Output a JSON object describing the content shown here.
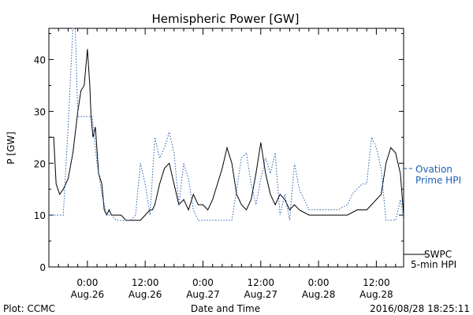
{
  "footer": {
    "left": "Plot: CCMC",
    "right": "2016/08/28 18:25:11"
  },
  "colors": {
    "swpc": "#000000",
    "ovation": "#1f5fb4"
  },
  "chart_data": {
    "type": "line",
    "title": "Hemispheric Power [GW]",
    "xlabel": "Date and Time",
    "ylabel": "P [GW]",
    "ylim": [
      0,
      46
    ],
    "xlim": [
      "2016-08-25 16:00",
      "2016-08-28 17:40"
    ],
    "yticks": [
      0,
      10,
      20,
      30,
      40
    ],
    "xticks": [
      {
        "time": "2016-08-26 00:00",
        "label1": "0:00",
        "label2": "Aug.26"
      },
      {
        "time": "2016-08-26 12:00",
        "label1": "12:00",
        "label2": "Aug.26"
      },
      {
        "time": "2016-08-27 00:00",
        "label1": "0:00",
        "label2": "Aug.27"
      },
      {
        "time": "2016-08-27 12:00",
        "label1": "12:00",
        "label2": "Aug.27"
      },
      {
        "time": "2016-08-28 00:00",
        "label1": "0:00",
        "label2": "Aug.28"
      },
      {
        "time": "2016-08-28 12:00",
        "label1": "12:00",
        "label2": "Aug.28"
      }
    ],
    "grid": false,
    "legend_position": "right",
    "series": [
      {
        "name": "SWPC 5-min HPI",
        "legend_line1": "SWPC",
        "legend_line2": "5-min HPI",
        "style": "solid",
        "x": [
          "2016-08-25 16:00",
          "2016-08-25 17:00",
          "2016-08-25 17:30",
          "2016-08-25 18:15",
          "2016-08-25 19:00",
          "2016-08-25 20:00",
          "2016-08-25 21:00",
          "2016-08-25 22:00",
          "2016-08-25 22:40",
          "2016-08-25 23:20",
          "2016-08-26 00:00",
          "2016-08-26 00:30",
          "2016-08-26 00:45",
          "2016-08-26 01:10",
          "2016-08-26 01:40",
          "2016-08-26 02:20",
          "2016-08-26 03:00",
          "2016-08-26 03:30",
          "2016-08-26 04:00",
          "2016-08-26 04:30",
          "2016-08-26 05:00",
          "2016-08-26 05:30",
          "2016-08-26 06:00",
          "2016-08-26 07:00",
          "2016-08-26 08:00",
          "2016-08-26 09:00",
          "2016-08-26 10:00",
          "2016-08-26 11:00",
          "2016-08-26 12:00",
          "2016-08-26 13:00",
          "2016-08-26 13:30",
          "2016-08-26 14:00",
          "2016-08-26 15:00",
          "2016-08-26 16:00",
          "2016-08-26 17:00",
          "2016-08-26 18:00",
          "2016-08-26 19:00",
          "2016-08-26 20:00",
          "2016-08-26 21:00",
          "2016-08-26 22:00",
          "2016-08-26 23:00",
          "2016-08-27 00:00",
          "2016-08-27 01:00",
          "2016-08-27 02:00",
          "2016-08-27 03:00",
          "2016-08-27 04:00",
          "2016-08-27 05:00",
          "2016-08-27 06:00",
          "2016-08-27 07:00",
          "2016-08-27 08:00",
          "2016-08-27 09:00",
          "2016-08-27 10:00",
          "2016-08-27 11:00",
          "2016-08-27 12:00",
          "2016-08-27 13:00",
          "2016-08-27 14:00",
          "2016-08-27 15:00",
          "2016-08-27 16:00",
          "2016-08-27 17:00",
          "2016-08-27 18:00",
          "2016-08-27 19:00",
          "2016-08-27 20:00",
          "2016-08-27 22:00",
          "2016-08-28 00:00",
          "2016-08-28 02:00",
          "2016-08-28 04:00",
          "2016-08-28 06:00",
          "2016-08-28 08:00",
          "2016-08-28 09:00",
          "2016-08-28 10:00",
          "2016-08-28 11:00",
          "2016-08-28 12:00",
          "2016-08-28 13:00",
          "2016-08-28 14:00",
          "2016-08-28 15:00",
          "2016-08-28 16:00",
          "2016-08-28 17:00",
          "2016-08-28 17:40"
        ],
        "y": [
          25,
          25,
          16,
          14,
          15,
          17,
          22,
          30,
          34,
          35,
          42,
          35,
          29,
          25,
          27,
          18,
          16,
          11,
          10,
          11,
          10,
          10,
          10,
          10,
          9,
          9,
          9,
          9,
          10,
          11,
          11,
          12,
          16,
          19,
          20,
          16,
          12,
          13,
          11,
          14,
          12,
          12,
          11,
          13,
          16,
          19,
          23,
          20,
          14,
          12,
          11,
          13,
          18,
          24,
          18,
          14,
          12,
          14,
          13,
          11,
          12,
          11,
          10,
          10,
          10,
          10,
          10,
          11,
          11,
          11,
          12,
          13,
          14,
          20,
          23,
          22,
          18,
          10
        ]
      },
      {
        "name": "Ovation Prime HPI",
        "legend_line1": "Ovation",
        "legend_line2": "Prime HPI",
        "style": "dotted",
        "x": [
          "2016-08-25 16:00",
          "2016-08-25 19:00",
          "2016-08-25 20:00",
          "2016-08-25 21:00",
          "2016-08-25 21:30",
          "2016-08-25 22:00",
          "2016-08-25 23:00",
          "2016-08-26 00:00",
          "2016-08-26 01:00",
          "2016-08-26 02:00",
          "2016-08-26 03:00",
          "2016-08-26 04:00",
          "2016-08-26 05:00",
          "2016-08-26 06:00",
          "2016-08-26 07:00",
          "2016-08-26 09:00",
          "2016-08-26 10:00",
          "2016-08-26 11:00",
          "2016-08-26 12:00",
          "2016-08-26 13:00",
          "2016-08-26 14:00",
          "2016-08-26 15:00",
          "2016-08-26 16:00",
          "2016-08-26 17:00",
          "2016-08-26 18:00",
          "2016-08-26 19:00",
          "2016-08-26 20:00",
          "2016-08-26 21:00",
          "2016-08-26 22:00",
          "2016-08-26 23:00",
          "2016-08-27 00:00",
          "2016-08-27 01:00",
          "2016-08-27 02:00",
          "2016-08-27 03:00",
          "2016-08-27 05:00",
          "2016-08-27 06:00",
          "2016-08-27 07:00",
          "2016-08-27 08:00",
          "2016-08-27 09:00",
          "2016-08-27 10:00",
          "2016-08-27 11:00",
          "2016-08-27 12:00",
          "2016-08-27 13:00",
          "2016-08-27 14:00",
          "2016-08-27 15:00",
          "2016-08-27 16:00",
          "2016-08-27 17:00",
          "2016-08-27 18:00",
          "2016-08-27 19:00",
          "2016-08-27 20:00",
          "2016-08-27 22:00",
          "2016-08-28 00:00",
          "2016-08-28 02:00",
          "2016-08-28 04:00",
          "2016-08-28 06:00",
          "2016-08-28 07:00",
          "2016-08-28 08:00",
          "2016-08-28 09:00",
          "2016-08-28 10:00",
          "2016-08-28 11:00",
          "2016-08-28 12:00",
          "2016-08-28 13:00",
          "2016-08-28 14:00",
          "2016-08-28 15:00",
          "2016-08-28 16:00",
          "2016-08-28 17:00",
          "2016-08-28 17:40"
        ],
        "y": [
          10,
          10,
          27,
          46,
          46,
          29,
          29,
          29,
          29,
          20,
          14,
          10,
          10,
          9,
          9,
          9,
          10,
          20,
          16,
          10,
          25,
          21,
          23,
          26,
          22,
          12,
          20,
          17,
          11,
          9,
          9,
          9,
          9,
          9,
          9,
          9,
          15,
          21,
          22,
          16,
          12,
          17,
          21,
          18,
          22,
          10,
          14,
          9,
          20,
          15,
          11,
          11,
          11,
          11,
          12,
          14,
          15,
          16,
          16,
          25,
          23,
          19,
          9,
          9,
          9,
          13,
          9
        ]
      }
    ]
  }
}
